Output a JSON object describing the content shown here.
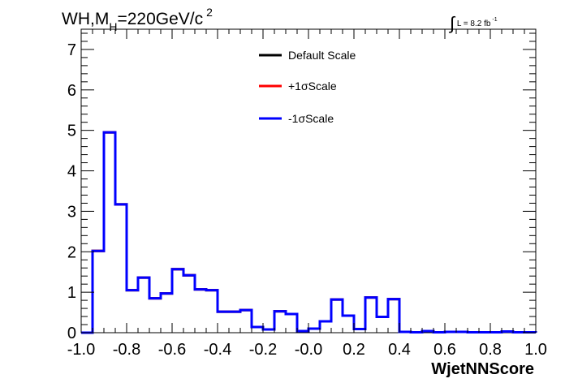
{
  "title": {
    "base": "WH,M",
    "subscript": "H",
    "rest": "=220GeV/c",
    "superscript": "2"
  },
  "lumi": {
    "integral": "∫",
    "text": "L = 8.2 fb",
    "superscript": "-1"
  },
  "chart_data": {
    "type": "line",
    "style": "step-histogram",
    "xlabel": "WjetNNScore",
    "ylabel": "",
    "xlim": [
      -1.0,
      1.0
    ],
    "ylim": [
      0,
      7.5
    ],
    "x_ticks": [
      -1.0,
      -0.8,
      -0.6,
      -0.4,
      -0.2,
      0.0,
      0.2,
      0.4,
      0.6,
      0.8,
      1.0
    ],
    "x_tick_labels": [
      "-1.0",
      "-0.8",
      "-0.6",
      "-0.4",
      "-0.2",
      "-0.0",
      "0.2",
      "0.4",
      "0.6",
      "0.8",
      "1.0"
    ],
    "y_ticks": [
      0,
      1,
      2,
      3,
      4,
      5,
      6,
      7
    ],
    "y_tick_labels": [
      "0",
      "1",
      "2",
      "3",
      "4",
      "5",
      "6",
      "7"
    ],
    "bin_edges": [
      -1.0,
      -0.95,
      -0.9,
      -0.85,
      -0.8,
      -0.75,
      -0.7,
      -0.65,
      -0.6,
      -0.55,
      -0.5,
      -0.45,
      -0.4,
      -0.35,
      -0.3,
      -0.25,
      -0.2,
      -0.15,
      -0.1,
      -0.05,
      0.0,
      0.05,
      0.1,
      0.15,
      0.2,
      0.25,
      0.3,
      0.35,
      0.4,
      0.45,
      0.5,
      0.55,
      0.6,
      0.65,
      0.7,
      0.75,
      0.8,
      0.85,
      0.9,
      0.95,
      1.0
    ],
    "legend_position": "top-center",
    "series": [
      {
        "name": "Default Scale",
        "color": "#000000",
        "values": [
          0,
          2.02,
          4.95,
          3.17,
          1.05,
          1.36,
          0.85,
          0.97,
          1.57,
          1.42,
          1.07,
          1.05,
          0.52,
          0.52,
          0.56,
          0.14,
          0.08,
          0.53,
          0.46,
          0.04,
          0.1,
          0.28,
          0.82,
          0.42,
          0.09,
          0.87,
          0.39,
          0.83,
          0.02,
          0.01,
          0.04,
          0.01,
          0.02,
          0.02,
          0.01,
          0.01,
          0.01,
          0.03,
          0.01,
          0.01
        ]
      },
      {
        "name": "+1σScale",
        "color": "#ff0000",
        "values": [
          0,
          2.02,
          4.95,
          3.17,
          1.05,
          1.36,
          0.85,
          0.97,
          1.57,
          1.42,
          1.07,
          1.05,
          0.52,
          0.52,
          0.56,
          0.14,
          0.08,
          0.53,
          0.46,
          0.04,
          0.1,
          0.28,
          0.82,
          0.42,
          0.09,
          0.87,
          0.39,
          0.83,
          0.02,
          0.01,
          0.04,
          0.01,
          0.02,
          0.02,
          0.01,
          0.01,
          0.01,
          0.03,
          0.01,
          0.01
        ]
      },
      {
        "name": "-1σScale",
        "color": "#0000ff",
        "values": [
          0,
          2.02,
          4.95,
          3.17,
          1.05,
          1.36,
          0.85,
          0.97,
          1.57,
          1.42,
          1.07,
          1.05,
          0.52,
          0.52,
          0.56,
          0.14,
          0.08,
          0.53,
          0.46,
          0.04,
          0.1,
          0.28,
          0.82,
          0.42,
          0.09,
          0.87,
          0.39,
          0.83,
          0.02,
          0.01,
          0.04,
          0.01,
          0.02,
          0.02,
          0.01,
          0.01,
          0.01,
          0.03,
          0.01,
          0.01
        ]
      }
    ]
  }
}
